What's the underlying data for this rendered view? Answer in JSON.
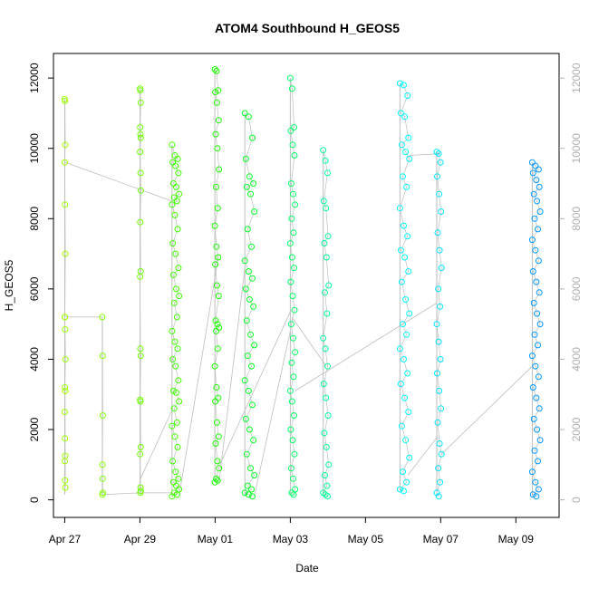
{
  "chart_data": {
    "type": "scatter",
    "title": "ATOM4 Southbound H_GEOS5",
    "xlabel": "Date",
    "ylabel": "H_GEOS5",
    "xlim": [
      "2018-04-26T16:48",
      "2018-05-10T03:36"
    ],
    "ylim": [
      -500,
      12700
    ],
    "x_ticks": [
      {
        "date": "2018-04-27",
        "label": "Apr 27"
      },
      {
        "date": "2018-04-29",
        "label": "Apr 29"
      },
      {
        "date": "2018-05-01",
        "label": "May 01"
      },
      {
        "date": "2018-05-03",
        "label": "May 03"
      },
      {
        "date": "2018-05-05",
        "label": "May 05"
      },
      {
        "date": "2018-05-07",
        "label": "May 07"
      },
      {
        "date": "2018-05-09",
        "label": "May 09"
      }
    ],
    "y_ticks": [
      0,
      2000,
      4000,
      6000,
      8000,
      10000,
      12000
    ],
    "right_axis": {
      "color": "#b0b0b0",
      "ticks": [
        0,
        2000,
        4000,
        6000,
        8000,
        10000,
        12000
      ]
    },
    "colors": {
      "line": "#bebebe",
      "apr27": "#9cff00",
      "apr28": "#80ff00",
      "apr29": "#6cff00",
      "apr30": "#40ff00",
      "may01": "#1aff00",
      "may02": "#00ff22",
      "may03": "#00ff66",
      "may04": "#00ff99",
      "may06": "#00ffff",
      "may07": "#00e6ff",
      "may09": "#0099ff"
    },
    "segments": [
      {
        "date": "2018-04-27",
        "color_key": "apr27",
        "x_start": "2018-04-27T00:00",
        "x_end": "2018-04-27T00:25",
        "y_min": 150,
        "y_max": 11400,
        "values": [
          11400,
          11350,
          10100,
          9600,
          8400,
          7000,
          5200,
          4850,
          4000,
          3200,
          3100,
          2500,
          1750,
          1250,
          1100,
          550,
          350,
          5200
        ]
      },
      {
        "date": "2018-04-28",
        "color_key": "apr28",
        "x_start": "2018-04-28T00:00",
        "x_end": "2018-04-28T00:20",
        "y_min": 150,
        "y_max": 5200,
        "values": [
          5200,
          4100,
          2400,
          1000,
          600,
          200,
          150
        ]
      },
      {
        "date": "2018-04-29",
        "color_key": "apr29",
        "x_start": "2018-04-29T00:05",
        "x_end": "2018-04-29T00:35",
        "y_min": 150,
        "y_max": 11700,
        "values": [
          11700,
          11650,
          11300,
          10600,
          10400,
          10300,
          9900,
          9300,
          8800,
          7900,
          6500,
          6350,
          4300,
          4100,
          2850,
          2800,
          1500,
          1300,
          350,
          250,
          200
        ]
      },
      {
        "date": "2018-04-30",
        "color_key": "apr30",
        "x_start": "2018-04-29T20:30",
        "x_end": "2018-04-30T01:00",
        "y_min": 100,
        "y_max": 10100,
        "values": [
          10100,
          9800,
          9700,
          9600,
          9500,
          9300,
          9000,
          8900,
          8700,
          8600,
          8500,
          8400,
          8100,
          7700,
          7300,
          7000,
          6600,
          6400,
          6000,
          5800,
          5600,
          5200,
          4800,
          4500,
          4300,
          4000,
          3800,
          3400,
          3100,
          3050,
          2800,
          2600,
          2200,
          2100,
          1800,
          1500,
          1100,
          800,
          600,
          500,
          400,
          300,
          200,
          150,
          100
        ]
      },
      {
        "date": "2018-05-01",
        "color_key": "may01",
        "x_start": "2018-04-30T23:50",
        "x_end": "2018-05-01T02:30",
        "y_min": 500,
        "y_max": 12250,
        "values": [
          12250,
          12200,
          11650,
          11600,
          11300,
          10800,
          10400,
          10000,
          9400,
          8900,
          8300,
          7800,
          7200,
          6900,
          6700,
          6100,
          5800,
          5100,
          5000,
          4900,
          4800,
          4300,
          3800,
          3200,
          2900,
          2800,
          2200,
          1800,
          1600,
          1100,
          900,
          600,
          550,
          500
        ]
      },
      {
        "date": "2018-05-02",
        "color_key": "may02",
        "x_start": "2018-05-01T19:00",
        "x_end": "2018-05-02T01:00",
        "y_min": 100,
        "y_max": 11000,
        "values": [
          11000,
          10900,
          10300,
          9700,
          9200,
          9000,
          8900,
          8700,
          8200,
          7700,
          7200,
          6800,
          6500,
          6300,
          6000,
          5700,
          5500,
          5100,
          4700,
          4400,
          4100,
          3800,
          3400,
          3100,
          2700,
          2300,
          2000,
          1700,
          1300,
          900,
          700,
          400,
          300,
          200,
          150,
          100
        ]
      },
      {
        "date": "2018-05-03",
        "color_key": "may03",
        "x_start": "2018-05-03T00:00",
        "x_end": "2018-05-03T03:00",
        "y_min": 150,
        "y_max": 12000,
        "values": [
          12000,
          11700,
          10600,
          10500,
          10100,
          9800,
          9000,
          8700,
          8400,
          8000,
          7600,
          7300,
          6900,
          6600,
          6200,
          5800,
          5400,
          5000,
          4600,
          4200,
          3900,
          3500,
          3100,
          2800,
          2400,
          2000,
          1700,
          1300,
          900,
          600,
          300,
          200,
          150
        ]
      },
      {
        "date": "2018-05-04",
        "color_key": "may04",
        "x_start": "2018-05-03T21:00",
        "x_end": "2018-05-04T00:30",
        "y_min": 100,
        "y_max": 9950,
        "values": [
          9950,
          9650,
          9300,
          8500,
          8300,
          7500,
          7300,
          6900,
          6100,
          5900,
          5300,
          4600,
          4300,
          3800,
          3300,
          2900,
          2400,
          1900,
          1500,
          1000,
          700,
          400,
          200,
          150,
          100
        ]
      },
      {
        "date": "2018-05-06",
        "color_key": "may06",
        "x_start": "2018-05-05T22:00",
        "x_end": "2018-05-06T04:00",
        "y_min": 250,
        "y_max": 11850,
        "values": [
          11850,
          11800,
          11500,
          11000,
          10900,
          10300,
          10100,
          9900,
          9700,
          9200,
          8900,
          8300,
          7800,
          7500,
          7100,
          6900,
          6500,
          6200,
          5700,
          5300,
          5000,
          4700,
          4300,
          4000,
          3600,
          3300,
          2900,
          2500,
          2100,
          1700,
          1200,
          800,
          500,
          300,
          250
        ]
      },
      {
        "date": "2018-05-07",
        "color_key": "may07",
        "x_start": "2018-05-06T21:30",
        "x_end": "2018-05-07T00:30",
        "y_min": 100,
        "y_max": 9900,
        "values": [
          9900,
          9850,
          9600,
          9200,
          8700,
          8200,
          7600,
          7100,
          6600,
          6000,
          5500,
          5000,
          4500,
          4000,
          3600,
          3100,
          2600,
          2200,
          1600,
          1300,
          900,
          500,
          200,
          100
        ]
      },
      {
        "date": "2018-05-09",
        "color_key": "may09",
        "x_start": "2018-05-09T10:30",
        "x_end": "2018-05-09T15:30",
        "y_min": 100,
        "y_max": 9600,
        "values": [
          9600,
          9500,
          9400,
          9300,
          9100,
          8900,
          8700,
          8500,
          8200,
          8000,
          7700,
          7400,
          7100,
          6800,
          6500,
          6200,
          5900,
          5600,
          5300,
          5000,
          4700,
          4400,
          4100,
          3800,
          3500,
          3200,
          2900,
          2600,
          2300,
          2000,
          1700,
          1400,
          1100,
          800,
          500,
          300,
          150,
          100
        ]
      }
    ],
    "connectors": [
      {
        "x1": "2018-04-27T00:25",
        "y1": 9600,
        "x2": "2018-04-29T20:30",
        "y2": 8500
      },
      {
        "x1": "2018-04-27T00:00",
        "y1": 5200,
        "x2": "2018-04-28T00:00",
        "y2": 5200
      },
      {
        "x1": "2018-04-28T00:20",
        "y1": 150,
        "x2": "2018-04-29T00:05",
        "y2": 200
      },
      {
        "x1": "2018-04-29T00:35",
        "y1": 200,
        "x2": "2018-04-29T20:30",
        "y2": 200
      },
      {
        "x1": "2018-04-29T00:20",
        "y1": 600,
        "x2": "2018-04-29T21:00",
        "y2": 2600
      },
      {
        "x1": "2018-04-30T01:00",
        "y1": 100,
        "x2": "2018-05-01T02:00",
        "y2": 6900
      },
      {
        "x1": "2018-05-01T02:30",
        "y1": 500,
        "x2": "2018-05-01T19:00",
        "y2": 6600
      },
      {
        "x1": "2018-05-01T03:00",
        "y1": 1000,
        "x2": "2018-05-03T00:30",
        "y2": 5400
      },
      {
        "x1": "2018-05-02T01:00",
        "y1": 100,
        "x2": "2018-05-03T00:00",
        "y2": 4800
      },
      {
        "x1": "2018-05-03T01:00",
        "y1": 5200,
        "x2": "2018-05-03T23:00",
        "y2": 3800
      },
      {
        "x1": "2018-05-03T03:00",
        "y1": 3100,
        "x2": "2018-05-06T21:30",
        "y2": 5600
      },
      {
        "x1": "2018-05-06T04:00",
        "y1": 9800,
        "x2": "2018-05-07T00:00",
        "y2": 9850
      },
      {
        "x1": "2018-05-06T03:00",
        "y1": 700,
        "x2": "2018-05-06T22:00",
        "y2": 1800
      },
      {
        "x1": "2018-05-07T00:30",
        "y1": 1300,
        "x2": "2018-05-09T10:30",
        "y2": 3800
      }
    ]
  }
}
